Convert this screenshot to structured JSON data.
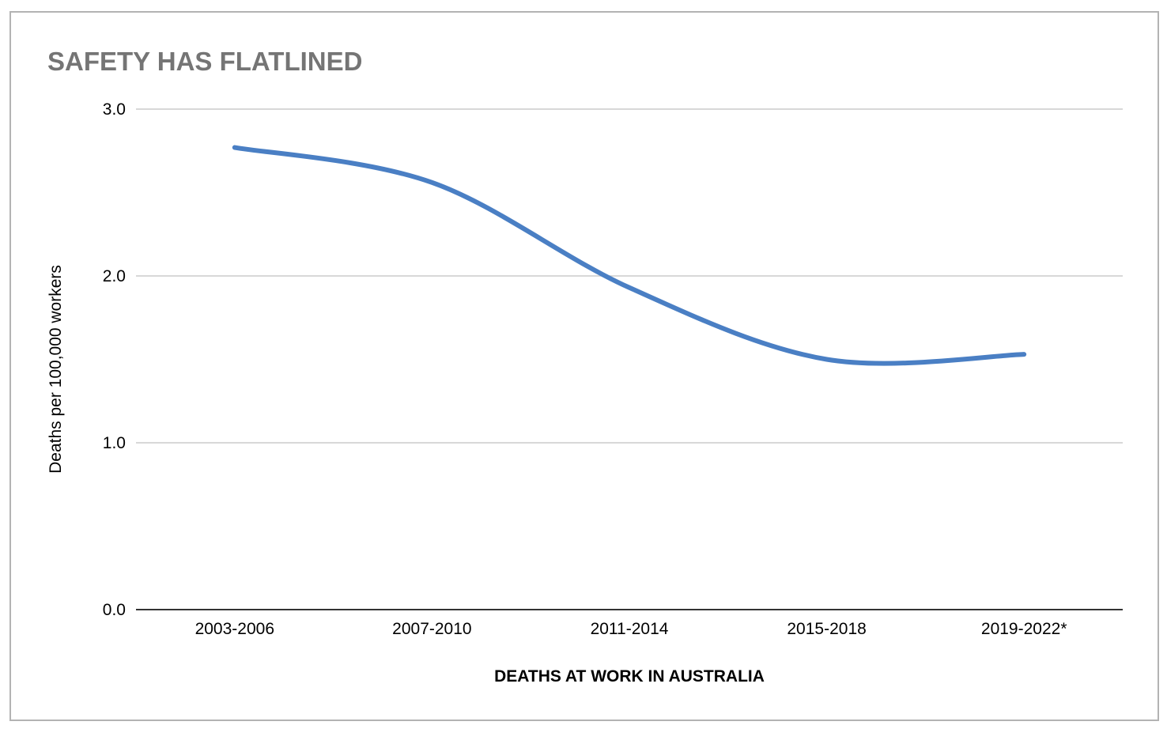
{
  "chart_data": {
    "type": "line",
    "title": "SAFETY HAS FLATLINED",
    "xlabel": "DEATHS AT WORK IN AUSTRALIA",
    "ylabel": "Deaths per 100,000 workers",
    "categories": [
      "2003-2006",
      "2007-2010",
      "2011-2014",
      "2015-2018",
      "2019-2022*"
    ],
    "series": [
      {
        "values": [
          2.77,
          2.56,
          1.93,
          1.5,
          1.53
        ]
      }
    ],
    "ylim": [
      0,
      3
    ],
    "yticks": [
      "0.0",
      "1.0",
      "2.0",
      "3.0"
    ],
    "grid": true,
    "smooth": true,
    "colors": {
      "line": "#4a7fc4",
      "grid": "#cccccc",
      "axis": "#333333",
      "title": "#757575",
      "border": "#b3b3b3"
    }
  }
}
